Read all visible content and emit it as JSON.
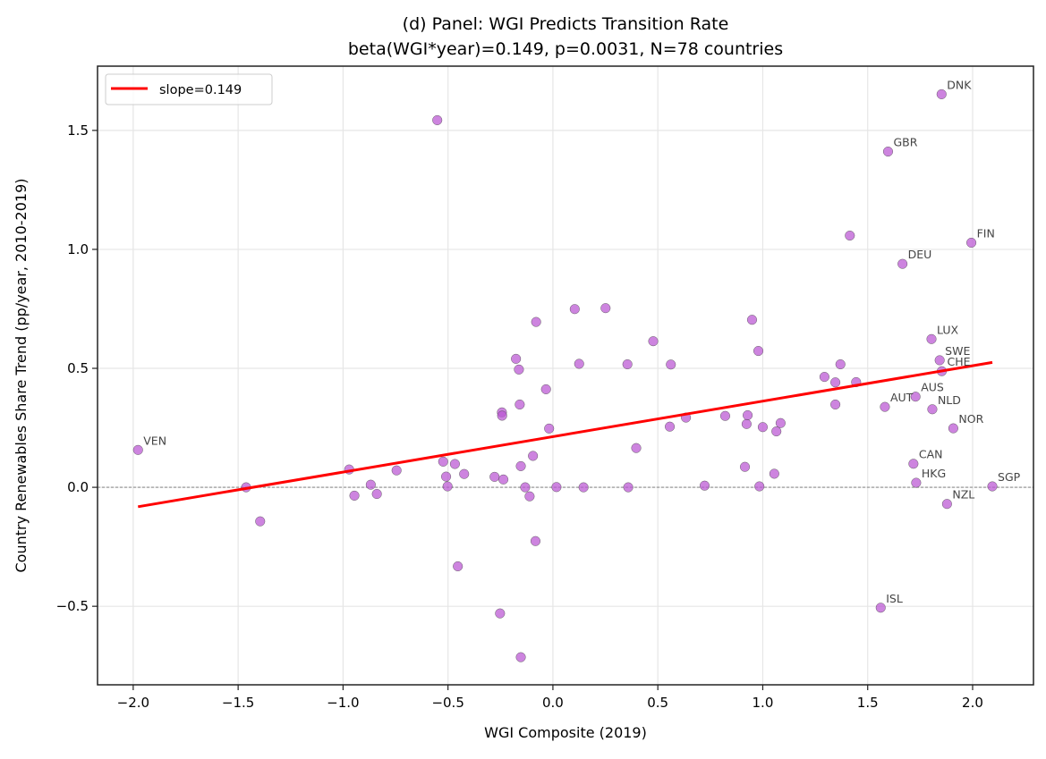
{
  "chart_data": {
    "type": "scatter",
    "title": "(d) Panel: WGI Predicts Transition Rate",
    "subtitle": "beta(WGI*year)=0.149, p=0.0031, N=78 countries",
    "xlabel": "WGI Composite (2019)",
    "ylabel": "Country Renewables Share Trend (pp/year, 2010-2019)",
    "xlim": [
      -2.17,
      2.29
    ],
    "ylim": [
      -0.83,
      1.77
    ],
    "xticks": [
      -2.0,
      -1.5,
      -1.0,
      -0.5,
      0.0,
      0.5,
      1.0,
      1.5,
      2.0
    ],
    "xtick_labels": [
      "−2.0",
      "−1.5",
      "−1.0",
      "−0.5",
      "0.0",
      "0.5",
      "1.0",
      "1.5",
      "2.0"
    ],
    "yticks": [
      -0.5,
      0.0,
      0.5,
      1.0,
      1.5
    ],
    "ytick_labels": [
      "−0.5",
      "0.0",
      "0.5",
      "1.0",
      "1.5"
    ],
    "grid": true,
    "zero_reference_line": 0.0,
    "legend": {
      "placement": "top-left",
      "entries": [
        "slope=0.149"
      ]
    },
    "colors": {
      "points": "#ba55d3",
      "point_edge": "#444444",
      "fit_line": "#ff0000",
      "label_text": "#444444"
    },
    "fit_line": {
      "slope": 0.149,
      "intercept": 0.213,
      "x_range": [
        -1.977,
        2.094
      ]
    },
    "points": [
      {
        "x": -1.977,
        "y": 0.157,
        "label": "VEN"
      },
      {
        "x": -1.462,
        "y": 0.0
      },
      {
        "x": -1.395,
        "y": -0.143
      },
      {
        "x": -0.971,
        "y": 0.075
      },
      {
        "x": -0.946,
        "y": -0.035
      },
      {
        "x": -0.868,
        "y": 0.011
      },
      {
        "x": -0.839,
        "y": -0.028
      },
      {
        "x": -0.745,
        "y": 0.071
      },
      {
        "x": -0.551,
        "y": 1.543
      },
      {
        "x": -0.523,
        "y": 0.108
      },
      {
        "x": -0.509,
        "y": 0.045
      },
      {
        "x": -0.502,
        "y": 0.004
      },
      {
        "x": -0.467,
        "y": 0.098
      },
      {
        "x": -0.453,
        "y": -0.332
      },
      {
        "x": -0.423,
        "y": 0.056
      },
      {
        "x": -0.278,
        "y": 0.044
      },
      {
        "x": -0.252,
        "y": -0.53
      },
      {
        "x": -0.243,
        "y": 0.315
      },
      {
        "x": -0.242,
        "y": 0.301
      },
      {
        "x": -0.236,
        "y": 0.033
      },
      {
        "x": -0.176,
        "y": 0.54
      },
      {
        "x": -0.162,
        "y": 0.495
      },
      {
        "x": -0.158,
        "y": 0.348
      },
      {
        "x": -0.153,
        "y": 0.089
      },
      {
        "x": -0.153,
        "y": -0.714
      },
      {
        "x": -0.132,
        "y": 0.0
      },
      {
        "x": -0.111,
        "y": -0.038
      },
      {
        "x": -0.095,
        "y": 0.132
      },
      {
        "x": -0.083,
        "y": -0.226
      },
      {
        "x": -0.08,
        "y": 0.695
      },
      {
        "x": -0.033,
        "y": 0.412
      },
      {
        "x": -0.018,
        "y": 0.247
      },
      {
        "x": 0.017,
        "y": 0.001
      },
      {
        "x": 0.104,
        "y": 0.749
      },
      {
        "x": 0.125,
        "y": 0.519
      },
      {
        "x": 0.146,
        "y": 0.0
      },
      {
        "x": 0.251,
        "y": 0.753
      },
      {
        "x": 0.355,
        "y": 0.517
      },
      {
        "x": 0.359,
        "y": 0.0
      },
      {
        "x": 0.397,
        "y": 0.165
      },
      {
        "x": 0.478,
        "y": 0.614
      },
      {
        "x": 0.557,
        "y": 0.255
      },
      {
        "x": 0.562,
        "y": 0.516
      },
      {
        "x": 0.634,
        "y": 0.293
      },
      {
        "x": 0.723,
        "y": 0.007
      },
      {
        "x": 0.821,
        "y": 0.3
      },
      {
        "x": 0.915,
        "y": 0.086
      },
      {
        "x": 0.923,
        "y": 0.266
      },
      {
        "x": 0.928,
        "y": 0.303
      },
      {
        "x": 0.949,
        "y": 0.704
      },
      {
        "x": 0.979,
        "y": 0.573
      },
      {
        "x": 0.984,
        "y": 0.004
      },
      {
        "x": 1.0,
        "y": 0.253
      },
      {
        "x": 1.055,
        "y": 0.057
      },
      {
        "x": 1.065,
        "y": 0.235
      },
      {
        "x": 1.085,
        "y": 0.27
      },
      {
        "x": 1.294,
        "y": 0.464
      },
      {
        "x": 1.346,
        "y": 0.441
      },
      {
        "x": 1.346,
        "y": 0.348
      },
      {
        "x": 1.37,
        "y": 0.517
      },
      {
        "x": 1.415,
        "y": 1.058
      },
      {
        "x": 1.445,
        "y": 0.442
      },
      {
        "x": 1.852,
        "y": 1.652,
        "label": "DNK"
      },
      {
        "x": 1.597,
        "y": 1.411,
        "label": "GBR"
      },
      {
        "x": 1.994,
        "y": 1.028,
        "label": "FIN"
      },
      {
        "x": 1.666,
        "y": 0.939,
        "label": "DEU"
      },
      {
        "x": 1.804,
        "y": 0.623,
        "label": "LUX"
      },
      {
        "x": 1.843,
        "y": 0.534,
        "label": "SWE"
      },
      {
        "x": 1.853,
        "y": 0.488,
        "label": "CHE"
      },
      {
        "x": 1.582,
        "y": 0.338,
        "label": "AUT"
      },
      {
        "x": 1.728,
        "y": 0.381,
        "label": "AUS"
      },
      {
        "x": 1.808,
        "y": 0.328,
        "label": "NLD"
      },
      {
        "x": 1.908,
        "y": 0.248,
        "label": "NOR"
      },
      {
        "x": 1.718,
        "y": 0.099,
        "label": "CAN"
      },
      {
        "x": 1.731,
        "y": 0.019,
        "label": "HKG"
      },
      {
        "x": 2.094,
        "y": 0.004,
        "label": "SGP"
      },
      {
        "x": 1.878,
        "y": -0.07,
        "label": "NZL"
      },
      {
        "x": 1.562,
        "y": -0.506,
        "label": "ISL"
      }
    ]
  }
}
